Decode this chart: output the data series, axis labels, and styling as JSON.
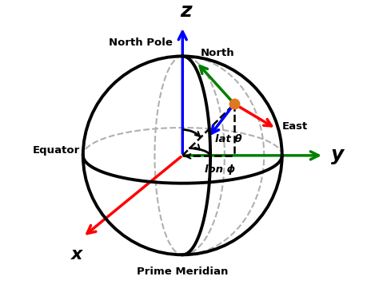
{
  "bg_color": "#ffffff",
  "sphere_color": "#000000",
  "sphere_lw": 2.8,
  "dashed_color": "#b0b0b0",
  "ecef_x_color": "#ff0000",
  "ecef_y_color": "#008000",
  "ecef_z_color": "#0000ff",
  "ned_north_color": "#008000",
  "ned_east_color": "#ff0000",
  "ned_down_color": "#0000ff",
  "point_color": "#e07820",
  "point_size": 9,
  "labels": {
    "z": "z",
    "y": "y",
    "x": "x",
    "north_pole": "North Pole",
    "equator": "Equator",
    "prime_meridian": "Prime Meridian",
    "north": "North",
    "east": "East",
    "lat": "lat θ",
    "lon": "lon ϕ"
  },
  "figsize": [
    4.69,
    3.76
  ],
  "dpi": 100
}
